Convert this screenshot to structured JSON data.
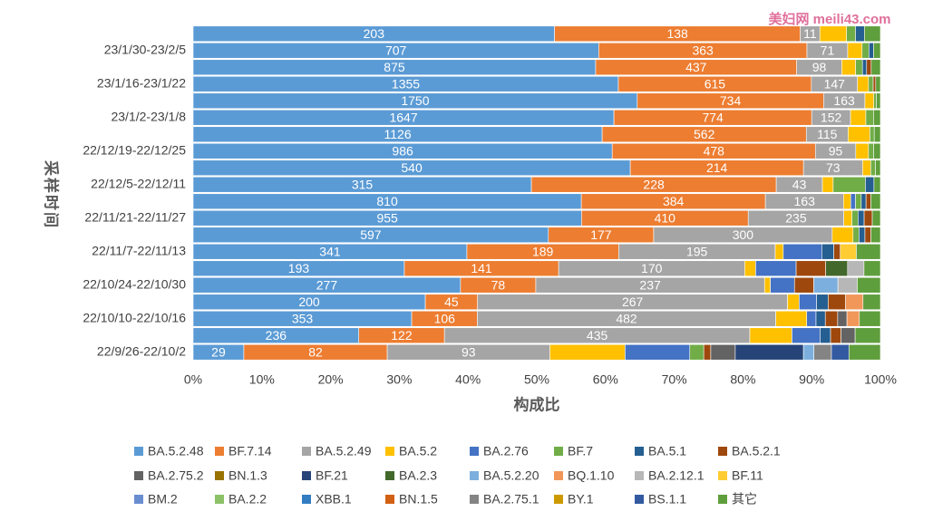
{
  "chart_data": {
    "type": "stacked_percent_barh",
    "watermark": "美妇网 meili43.com",
    "y_label": "采样时间",
    "x_label": "构成比",
    "categories": [
      null,
      "23/1/30-23/2/5",
      null,
      "23/1/16-23/1/22",
      null,
      "23/1/2-23/1/8",
      null,
      "22/12/19-22/12/25",
      null,
      "22/12/5-22/12/11",
      null,
      "22/11/21-22/11/27",
      null,
      "22/11/7-22/11/13",
      null,
      "22/10/24-22/10/30",
      null,
      "22/10/10-22/10/16",
      null,
      "22/9/26-22/10/2"
    ],
    "xlim": [
      0,
      100
    ],
    "xticks": [
      {
        "value": 0,
        "label": "0%"
      },
      {
        "value": 10,
        "label": "10%"
      },
      {
        "value": 20,
        "label": "20%"
      },
      {
        "value": 30,
        "label": "30%"
      },
      {
        "value": 40,
        "label": "40%"
      },
      {
        "value": 50,
        "label": "50%"
      },
      {
        "value": 60,
        "label": "60%"
      },
      {
        "value": 70,
        "label": "70%"
      },
      {
        "value": 80,
        "label": "80%"
      },
      {
        "value": 90,
        "label": "90%"
      },
      {
        "value": 100,
        "label": "100%"
      }
    ],
    "grid": false,
    "legend": "bottom",
    "series": [
      {
        "name": "BA.5.2.48",
        "color": "#5b9bd5",
        "show_labels": true,
        "values": [
          203,
          707,
          875,
          1355,
          1750,
          1647,
          1126,
          986,
          540,
          315,
          810,
          955,
          597,
          341,
          193,
          277,
          200,
          353,
          236,
          29
        ]
      },
      {
        "name": "BF.7.14",
        "color": "#ed7d31",
        "show_labels": true,
        "values": [
          138,
          363,
          437,
          615,
          734,
          774,
          562,
          478,
          214,
          228,
          384,
          410,
          177,
          189,
          141,
          78,
          45,
          106,
          122,
          82
        ]
      },
      {
        "name": "BA.5.2.49",
        "color": "#a5a5a5",
        "show_labels": true,
        "values": [
          11,
          71,
          98,
          147,
          163,
          152,
          115,
          95,
          73,
          43,
          163,
          235,
          300,
          195,
          170,
          237,
          267,
          482,
          435,
          93
        ]
      },
      {
        "name": "BA.5.2",
        "color": "#ffc000",
        "values": [
          15,
          25,
          30,
          35,
          35,
          60,
          60,
          30,
          10,
          10,
          15,
          20,
          35,
          10,
          10,
          6,
          10,
          50,
          60,
          43
        ]
      },
      {
        "name": "BA.2.76",
        "color": "#4472c4",
        "values": [
          0,
          0,
          0,
          0,
          0,
          0,
          0,
          0,
          0,
          0,
          10,
          0,
          0,
          48,
          37,
          25,
          15,
          15,
          40,
          37
        ]
      },
      {
        "name": "BF.7",
        "color": "#70ad47",
        "values": [
          5,
          12,
          15,
          15,
          10,
          30,
          12,
          12,
          6,
          30,
          12,
          15,
          10,
          0,
          0,
          0,
          0,
          0,
          0,
          8
        ]
      },
      {
        "name": "BA.5.1",
        "color": "#255e91",
        "values": [
          5,
          8,
          9,
          0,
          0,
          0,
          0,
          0,
          0,
          8,
          10,
          15,
          10,
          15,
          0,
          0,
          10,
          15,
          15,
          0
        ]
      },
      {
        "name": "BA.5.2.1",
        "color": "#9e480e",
        "values": [
          0,
          0,
          10,
          8,
          0,
          0,
          0,
          0,
          0,
          0,
          10,
          20,
          10,
          8,
          27,
          20,
          15,
          20,
          15,
          4
        ]
      },
      {
        "name": "BA.2.75.2",
        "color": "#636363",
        "values": [
          0,
          0,
          0,
          0,
          0,
          0,
          0,
          0,
          0,
          0,
          0,
          0,
          0,
          0,
          0,
          0,
          0,
          15,
          20,
          14
        ]
      },
      {
        "name": "BN.1.3",
        "color": "#997300",
        "values": [
          0,
          0,
          0,
          0,
          0,
          0,
          0,
          0,
          0,
          0,
          0,
          0,
          0,
          0,
          0,
          0,
          0,
          0,
          0,
          0
        ]
      },
      {
        "name": "BF.21",
        "color": "#264478",
        "values": [
          0,
          0,
          0,
          0,
          0,
          0,
          0,
          0,
          0,
          0,
          0,
          0,
          0,
          0,
          0,
          0,
          0,
          0,
          0,
          39
        ]
      },
      {
        "name": "BA.2.3",
        "color": "#43682b",
        "values": [
          0,
          0,
          0,
          0,
          0,
          0,
          0,
          0,
          0,
          0,
          0,
          0,
          0,
          0,
          20,
          0,
          0,
          0,
          0,
          0
        ]
      },
      {
        "name": "BA.5.2.20",
        "color": "#7cafdd",
        "values": [
          0,
          0,
          0,
          0,
          0,
          0,
          0,
          0,
          0,
          0,
          0,
          0,
          0,
          0,
          0,
          25,
          0,
          0,
          0,
          6
        ]
      },
      {
        "name": "BQ.1.10",
        "color": "#f1975a",
        "values": [
          0,
          0,
          0,
          0,
          0,
          0,
          0,
          0,
          0,
          0,
          0,
          0,
          0,
          0,
          0,
          0,
          15,
          20,
          0,
          0
        ]
      },
      {
        "name": "BA.2.12.1",
        "color": "#b7b7b7",
        "values": [
          0,
          0,
          0,
          0,
          0,
          0,
          0,
          0,
          0,
          0,
          0,
          0,
          0,
          0,
          15,
          20,
          0,
          0,
          0,
          0
        ]
      },
      {
        "name": "BF.11",
        "color": "#ffcd33",
        "values": [
          0,
          0,
          0,
          0,
          0,
          0,
          0,
          0,
          0,
          0,
          0,
          0,
          0,
          20,
          0,
          0,
          0,
          0,
          0,
          0
        ]
      },
      {
        "name": "BM.2",
        "color": "#698ed0",
        "values": [
          0,
          0,
          0,
          0,
          0,
          0,
          0,
          0,
          0,
          0,
          0,
          0,
          0,
          0,
          0,
          0,
          0,
          0,
          0,
          0
        ]
      },
      {
        "name": "BA.2.2",
        "color": "#8cc168",
        "values": [
          0,
          0,
          0,
          0,
          0,
          0,
          0,
          0,
          0,
          0,
          0,
          0,
          0,
          0,
          0,
          0,
          0,
          0,
          0,
          0
        ]
      },
      {
        "name": "XBB.1",
        "color": "#327dc2",
        "values": [
          0,
          0,
          0,
          0,
          0,
          0,
          0,
          0,
          0,
          0,
          0,
          0,
          0,
          0,
          0,
          0,
          0,
          0,
          0,
          0
        ]
      },
      {
        "name": "BN.1.5",
        "color": "#d26012",
        "values": [
          0,
          0,
          0,
          0,
          0,
          0,
          0,
          0,
          0,
          0,
          0,
          0,
          0,
          0,
          0,
          0,
          0,
          0,
          0,
          0
        ]
      },
      {
        "name": "BA.2.75.1",
        "color": "#848484",
        "values": [
          0,
          0,
          0,
          0,
          0,
          0,
          0,
          0,
          0,
          0,
          0,
          0,
          0,
          0,
          0,
          0,
          0,
          0,
          0,
          10
        ]
      },
      {
        "name": "BY.1",
        "color": "#cc9a00",
        "values": [
          0,
          0,
          0,
          0,
          0,
          0,
          0,
          0,
          0,
          0,
          0,
          0,
          0,
          0,
          0,
          0,
          0,
          0,
          0,
          0
        ]
      },
      {
        "name": "BS.1.1",
        "color": "#335aa1",
        "values": [
          0,
          0,
          0,
          0,
          0,
          0,
          0,
          0,
          0,
          0,
          0,
          0,
          0,
          0,
          0,
          0,
          0,
          0,
          0,
          10
        ]
      },
      {
        "name": "其它",
        "color": "#5f9e3c",
        "values": [
          9,
          12,
          20,
          15,
          16,
          27,
          17,
          16,
          6,
          6,
          20,
          20,
          16,
          30,
          15,
          24,
          15,
          34,
          36,
          18
        ]
      }
    ]
  }
}
